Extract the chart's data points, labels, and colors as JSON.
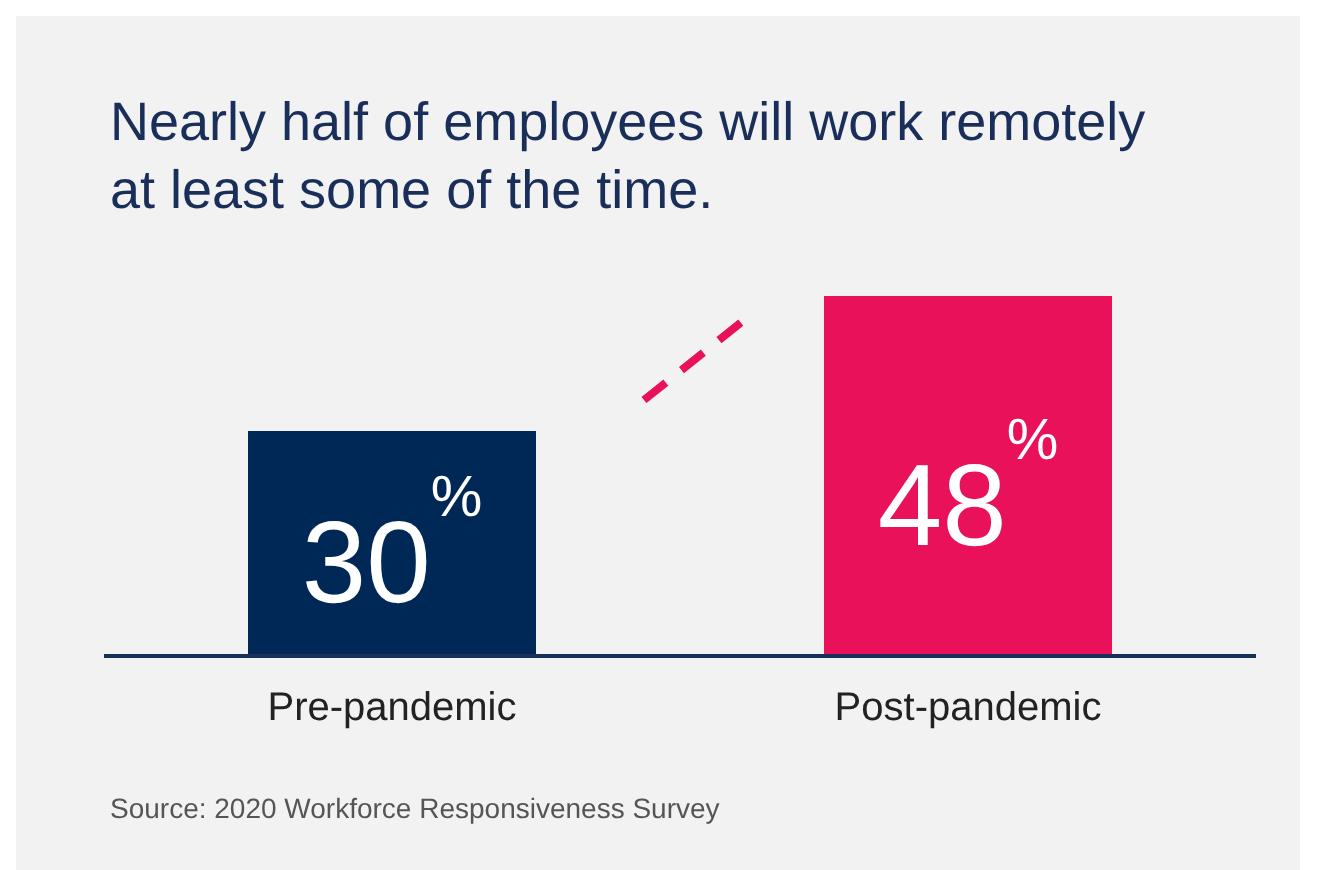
{
  "chart_data": {
    "type": "bar",
    "title": "Nearly half of employees will work remotely at least some of the time.",
    "categories": [
      "Pre-pandemic",
      "Post-pandemic"
    ],
    "values": [
      30,
      48
    ],
    "colors": [
      "#002856",
      "#e8115a"
    ],
    "value_labels": [
      "30$^{%}$",
      "48$^{%}$"
    ],
    "annotations": [
      "Source: 2020 Workforce Responsiveness Survey"
    ]
  }
}
